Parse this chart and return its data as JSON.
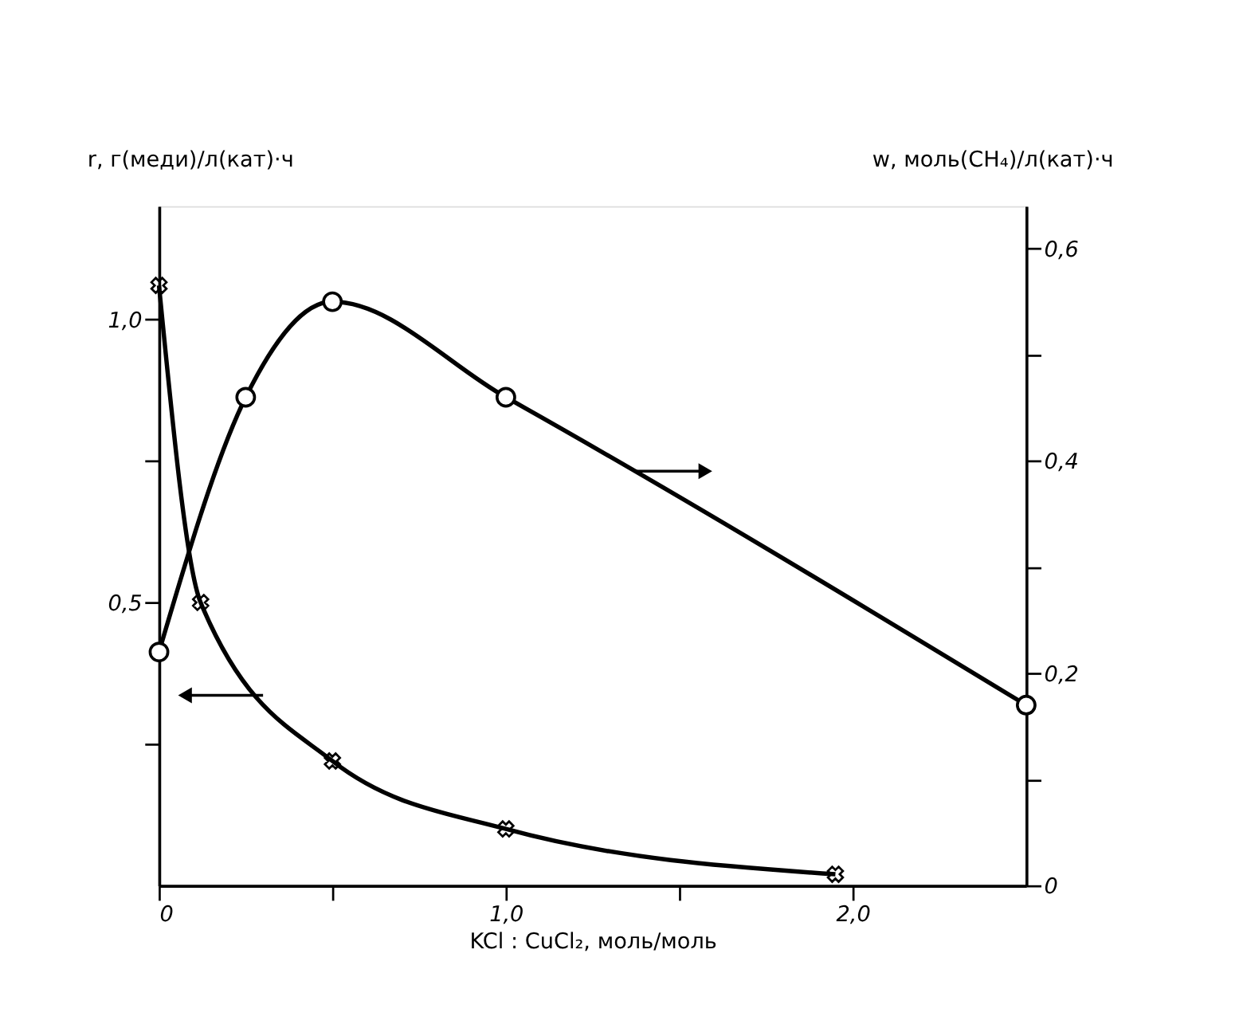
{
  "chart_data": {
    "type": "line",
    "xlabel": "KCl : CuCl₂, моль/моль",
    "ylabel": "r, г(меди)/л(кат)·ч",
    "y2label": "w, моль(CH₄)/л(кат)·ч",
    "xlim": [
      0,
      2.5
    ],
    "xticks": [
      {
        "value": 0,
        "label": "0"
      },
      {
        "value": 0.5,
        "label": null
      },
      {
        "value": 1.0,
        "label": "1,0"
      },
      {
        "value": 1.5,
        "label": null
      },
      {
        "value": 2.0,
        "label": "2,0"
      }
    ],
    "ylim": [
      0,
      1.2
    ],
    "yticks": [
      {
        "value": 0.25,
        "label": null
      },
      {
        "value": 0.5,
        "label": "0,5"
      },
      {
        "value": 0.75,
        "label": null
      },
      {
        "value": 1.0,
        "label": "1,0"
      }
    ],
    "y2lim": [
      0,
      0.64
    ],
    "y2ticks": [
      {
        "value": 0,
        "label": "0"
      },
      {
        "value": 0.1,
        "label": null
      },
      {
        "value": 0.2,
        "label": "0,2"
      },
      {
        "value": 0.3,
        "label": null
      },
      {
        "value": 0.4,
        "label": "0,4"
      },
      {
        "value": 0.5,
        "label": null
      },
      {
        "value": 0.6,
        "label": "0,6"
      }
    ],
    "line_style": "solid",
    "series": [
      {
        "color": "#000000",
        "marker": "cross",
        "x": [
          0,
          0.12,
          0.5,
          1.0,
          1.95
        ],
        "values": [
          1.06,
          0.5,
          0.22,
          0.1,
          0.02
        ]
      },
      {
        "color": "#000000",
        "marker": "circle",
        "axis": "y2",
        "x": [
          0,
          0.25,
          0.5,
          1.0,
          2.5
        ],
        "values": [
          0.22,
          0.46,
          0.55,
          0.46,
          0.17
        ]
      }
    ]
  }
}
